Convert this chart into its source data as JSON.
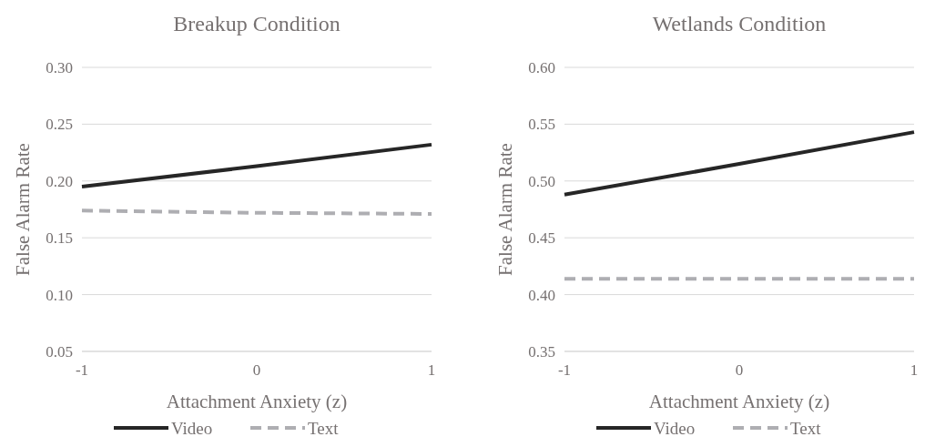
{
  "chart_data": [
    {
      "type": "line",
      "title": "Breakup Condition",
      "xlabel": "Attachment Anxiety (z)",
      "ylabel": "False Alarm Rate",
      "x": [
        -1,
        0,
        1
      ],
      "xlim": [
        -1,
        1
      ],
      "xticks": [
        -1,
        0,
        1
      ],
      "ylim": [
        0.05,
        0.3
      ],
      "yticks": [
        {
          "value": 0.05,
          "label": "0.05"
        },
        {
          "value": 0.1,
          "label": "0.10"
        },
        {
          "value": 0.15,
          "label": "0.15"
        },
        {
          "value": 0.2,
          "label": "0.20"
        },
        {
          "value": 0.25,
          "label": "0.25"
        },
        {
          "value": 0.3,
          "label": "0.30"
        }
      ],
      "grid": "y",
      "legend": "bottom",
      "marker": "none",
      "series": [
        {
          "name": "Video",
          "color": "#262626",
          "line_style": "solid",
          "values": [
            0.195,
            0.213,
            0.232
          ]
        },
        {
          "name": "Text",
          "color": "#aeaeb2",
          "line_style": "dashed",
          "values": [
            0.174,
            0.172,
            0.171
          ]
        }
      ]
    },
    {
      "type": "line",
      "title": "Wetlands Condition",
      "xlabel": "Attachment Anxiety (z)",
      "ylabel": "False Alarm Rate",
      "x": [
        -1,
        0,
        1
      ],
      "xlim": [
        -1,
        1
      ],
      "xticks": [
        -1,
        0,
        1
      ],
      "ylim": [
        0.35,
        0.6
      ],
      "yticks": [
        {
          "value": 0.35,
          "label": "0.35"
        },
        {
          "value": 0.4,
          "label": "0.40"
        },
        {
          "value": 0.45,
          "label": "0.45"
        },
        {
          "value": 0.5,
          "label": "0.50"
        },
        {
          "value": 0.55,
          "label": "0.55"
        },
        {
          "value": 0.6,
          "label": "0.60"
        }
      ],
      "grid": "y",
      "legend": "bottom",
      "marker": "none",
      "series": [
        {
          "name": "Video",
          "color": "#262626",
          "line_style": "solid",
          "values": [
            0.488,
            0.515,
            0.543
          ]
        },
        {
          "name": "Text",
          "color": "#aeaeb2",
          "line_style": "dashed",
          "values": [
            0.414,
            0.414,
            0.414
          ]
        }
      ]
    }
  ]
}
